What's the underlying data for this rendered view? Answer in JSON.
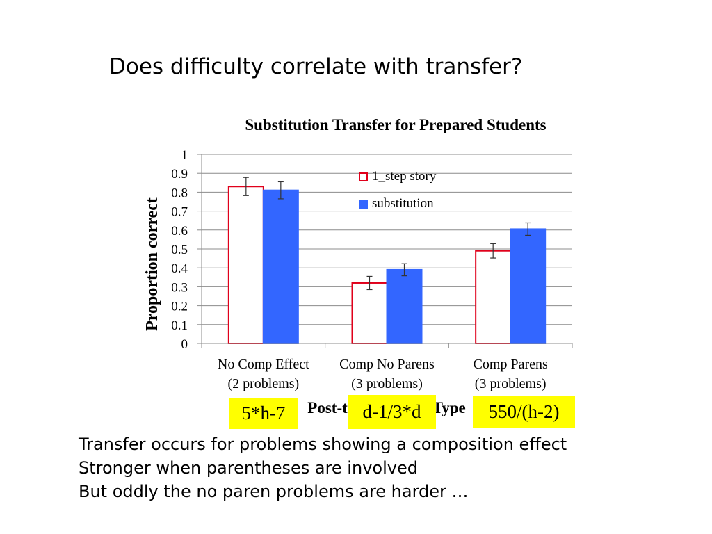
{
  "slide": {
    "title": "Does difficulty correlate with transfer?",
    "bullets": [
      "Transfer occurs for problems showing a composition effect",
      "Stronger when parentheses are involved",
      "But oddly the no paren problems are harder …"
    ],
    "highlights": [
      "5*h-7",
      "d-1/3*d",
      "550/(h-2)"
    ]
  },
  "chart_data": {
    "type": "bar",
    "title": "Substitution Transfer for Prepared Students",
    "ylabel": "Proportion correct",
    "xlabel": "Post-test Problem Type",
    "ylim": [
      0,
      1
    ],
    "yticks": [
      "0",
      "0.1",
      "0.2",
      "0.3",
      "0.4",
      "0.5",
      "0.6",
      "0.7",
      "0.8",
      "0.9",
      "1"
    ],
    "categories": [
      [
        "No Comp Effect",
        "(2 problems)"
      ],
      [
        "Comp No Parens",
        "(3 problems)"
      ],
      [
        "Comp Parens",
        "(3 problems)"
      ]
    ],
    "series": [
      {
        "name": "1_step story",
        "values": [
          0.83,
          0.32,
          0.49
        ],
        "errors": [
          0.048,
          0.035,
          0.038
        ],
        "fill": "#ffffff",
        "stroke": "#e0001b"
      },
      {
        "name": "substitution",
        "values": [
          0.81,
          0.39,
          0.605
        ],
        "errors": [
          0.045,
          0.032,
          0.033
        ],
        "fill": "#3366ff",
        "stroke": "#3366ff"
      }
    ],
    "legend_position": "top-right",
    "grid": true
  }
}
